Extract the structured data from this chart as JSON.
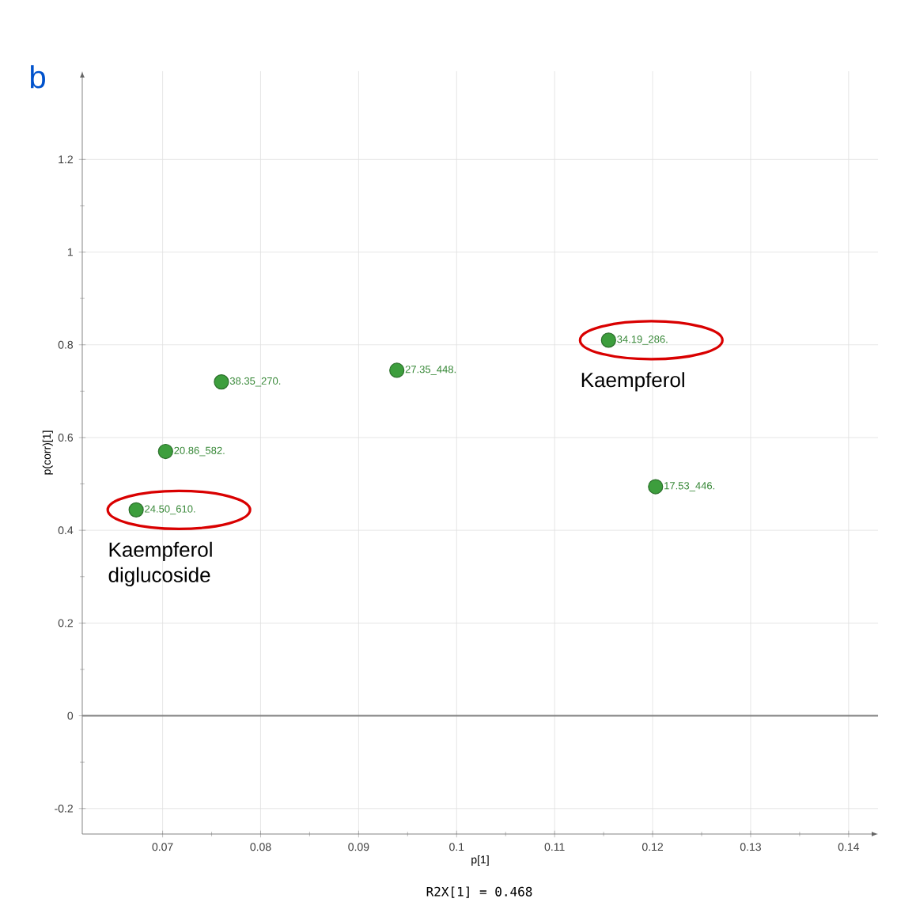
{
  "chart_data": {
    "type": "scatter",
    "title": "b",
    "subtitle": "R2X[1] = 0.468",
    "xlabel": "p[1]",
    "ylabel": "p(corr)[1]",
    "x": [
      0.0673,
      0.0703,
      0.076,
      0.0939,
      0.1155,
      0.1203
    ],
    "values": [
      0.444,
      0.57,
      0.72,
      0.745,
      0.81,
      0.494
    ],
    "value_labels": [
      "24.50_610.",
      "20.86_582.",
      "38.35_270.",
      "27.35_448.",
      "34.19_286.",
      "17.53_446."
    ],
    "color": "#3d9e3d",
    "marker": "circle",
    "xlim": [
      0.0618,
      0.143
    ],
    "ylim": [
      -0.255,
      1.39
    ],
    "xticks": [
      0.07,
      0.08,
      0.09,
      0.1,
      0.11,
      0.12,
      0.13,
      0.14
    ],
    "yticks": [
      -0.2,
      0,
      0.2,
      0.4,
      0.6,
      0.8,
      1,
      1.2
    ],
    "grid": true,
    "ref_lines": [
      {
        "axis": "y",
        "value": 0,
        "color": "#808080"
      }
    ],
    "annotations": [
      {
        "text": "Kaempferol",
        "x": 0.1155,
        "y": 0.81
      },
      {
        "text": "Kaempferol diglucoside",
        "x": 0.0673,
        "y": 0.444
      }
    ]
  }
}
